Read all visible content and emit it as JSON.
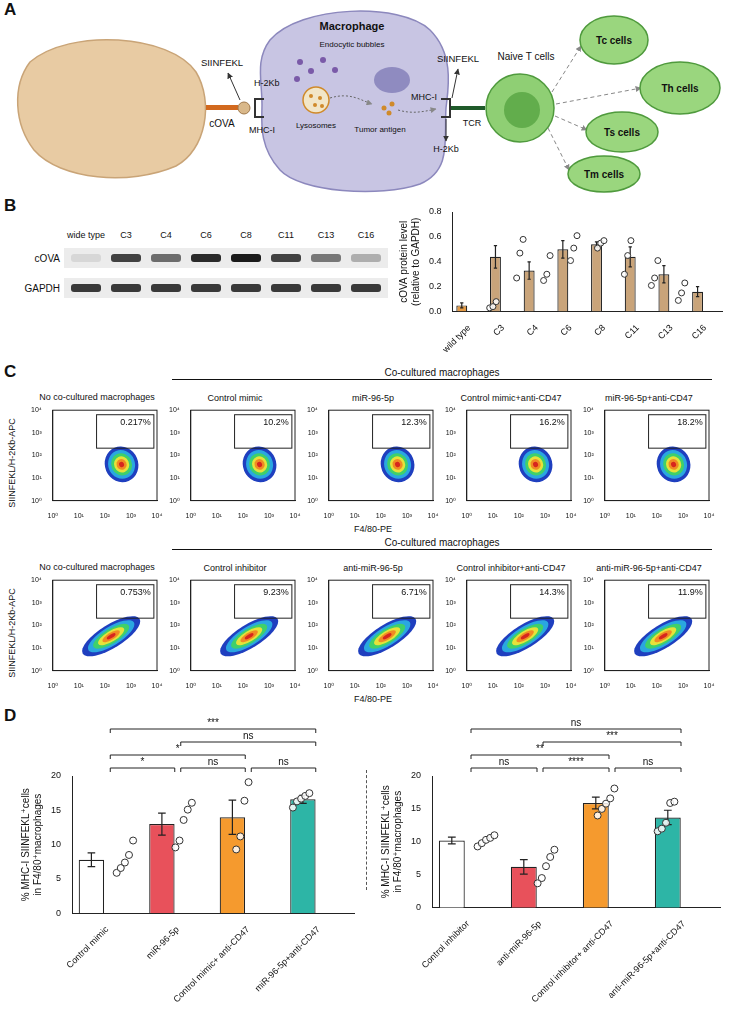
{
  "panel_letters": [
    "A",
    "B",
    "C",
    "D"
  ],
  "diagram": {
    "left_siinfekl": "SIINFEKL",
    "left_h2kb": "H-2Kb",
    "cova": "cOVA",
    "left_mhc": "MHC-I",
    "macrophage": "Macrophage",
    "endocytic": "Endocytic bubbles",
    "lysosomes": "Lysosomes",
    "antigen": "Tumor antigen",
    "right_mhc": "MHC-I",
    "right_siinfekl": "SIINFEKL",
    "right_h2kb": "H-2Kb",
    "tcr": "TCR",
    "naive": "Naive T cells",
    "subsets": [
      "Tc cells",
      "Th cells",
      "Ts cells",
      "Tm cells"
    ]
  },
  "blot": {
    "lanes": [
      "wide type",
      "C3",
      "C4",
      "C6",
      "C8",
      "C11",
      "C13",
      "C16"
    ],
    "rows": [
      "cOVA",
      "GAPDH"
    ]
  },
  "chart_data": [
    {
      "type": "bar",
      "categories": [
        "wild type",
        "C3",
        "C4",
        "C6",
        "C8",
        "C11",
        "C13",
        "C16"
      ],
      "values": [
        0.05,
        0.44,
        0.33,
        0.5,
        0.54,
        0.44,
        0.3,
        0.16
      ],
      "errors": [
        0.02,
        0.09,
        0.07,
        0.07,
        0.02,
        0.08,
        0.07,
        0.04
      ],
      "points": [
        [
          0.03,
          0.04,
          0.08
        ],
        [
          0.27,
          0.47,
          0.58
        ],
        [
          0.25,
          0.3,
          0.45
        ],
        [
          0.41,
          0.51,
          0.61
        ],
        [
          0.51,
          0.55,
          0.57
        ],
        [
          0.3,
          0.45,
          0.57
        ],
        [
          0.21,
          0.27,
          0.41
        ],
        [
          0.09,
          0.15,
          0.23
        ]
      ],
      "colors": [
        "#e39a45",
        "#c9a47a",
        "#c9a47a",
        "#c9a47a",
        "#c9a47a",
        "#c9a47a",
        "#c9a47a",
        "#c9a47a"
      ],
      "ylim": [
        0,
        0.8
      ],
      "yticks": [
        {
          "value": 0,
          "label": "0.0"
        },
        0.2,
        0.4,
        0.6,
        0.8
      ],
      "y_label": [
        "cOVA protein level",
        "(relative to GAPDH)"
      ],
      "grid": false
    },
    {
      "type": "bar",
      "categories": [
        "Control mimic",
        "miR-96-5p",
        "Control mimic+ anti-CD47",
        "miR-96-5p+anti-CD47"
      ],
      "values": [
        7.8,
        13.0,
        14.0,
        16.6
      ],
      "errors": [
        1.0,
        1.6,
        2.5,
        0.6
      ],
      "points": [
        [
          5.9,
          6.6,
          7.4,
          8.5,
          10.6
        ],
        [
          9.6,
          10.6,
          13.6,
          15.1,
          16.1
        ],
        [
          9.3,
          11.2,
          16.4,
          19.1
        ],
        [
          15.4,
          16.3,
          16.7,
          17.1,
          17.5
        ]
      ],
      "colors": [
        "#ffffff",
        "#e8515b",
        "#f59a2e",
        "#2db5a6"
      ],
      "ylim": [
        0,
        20
      ],
      "yticks": [
        0,
        5,
        10,
        15,
        20
      ],
      "y_label": [
        "% MHC-I SIINFEKL⁺cells",
        "in F4/80⁺macrophages"
      ],
      "grid": false,
      "comparisons": [
        {
          "from": "Control mimic",
          "to": "miR-96-5p",
          "label": "*"
        },
        {
          "from": "miR-96-5p",
          "to": "Control mimic+ anti-CD47",
          "label": "ns"
        },
        {
          "from": "Control mimic+ anti-CD47",
          "to": "miR-96-5p+anti-CD47",
          "label": "ns"
        },
        {
          "from": "Control mimic",
          "to": "Control mimic+ anti-CD47",
          "label": "*"
        },
        {
          "from": "miR-96-5p",
          "to": "miR-96-5p+anti-CD47",
          "label": "ns"
        },
        {
          "from": "Control mimic",
          "to": "miR-96-5p+anti-CD47",
          "label": "***"
        }
      ]
    },
    {
      "type": "bar",
      "categories": [
        "Control inhibitor",
        "anti-miR-96-5p",
        "Control inhibitor+ anti-CD47",
        "anti-miR-96-5p+anti-CD47"
      ],
      "values": [
        10.2,
        6.2,
        15.9,
        13.7
      ],
      "errors": [
        0.5,
        1.1,
        0.9,
        1.1
      ],
      "points": [
        [
          9.3,
          9.8,
          10.3,
          10.6,
          11.0
        ],
        [
          3.7,
          4.5,
          6.3,
          7.7,
          8.8
        ],
        [
          14.0,
          15.0,
          15.8,
          16.6,
          18.1
        ],
        [
          11.6,
          12.0,
          12.9,
          15.9,
          16.1
        ]
      ],
      "colors": [
        "#ffffff",
        "#e8515b",
        "#f59a2e",
        "#2db5a6"
      ],
      "ylim": [
        0,
        20
      ],
      "yticks": [
        0,
        5,
        10,
        15,
        20
      ],
      "y_label": [
        "% MHC-I SIINFEKL⁺cells",
        "in F4/80⁺macrophages"
      ],
      "grid": false,
      "comparisons": [
        {
          "from": "Control inhibitor",
          "to": "anti-miR-96-5p",
          "label": "ns"
        },
        {
          "from": "anti-miR-96-5p",
          "to": "Control inhibitor+ anti-CD47",
          "label": "****"
        },
        {
          "from": "Control inhibitor+ anti-CD47",
          "to": "anti-miR-96-5p+anti-CD47",
          "label": "ns"
        },
        {
          "from": "Control inhibitor",
          "to": "Control inhibitor+ anti-CD47",
          "label": "**"
        },
        {
          "from": "anti-miR-96-5p",
          "to": "anti-miR-96-5p+anti-CD47",
          "label": "***"
        },
        {
          "from": "Control inhibitor",
          "to": "anti-miR-96-5p+anti-CD47",
          "label": "ns"
        }
      ]
    }
  ],
  "flow": {
    "x_label": "F4/80-PE",
    "y_label": "SIINFEKL/H-2Kb-APC",
    "xlim": [
      1,
      10000
    ],
    "ylim": [
      1,
      10000
    ],
    "xticks": [
      {
        "value": 1,
        "label": "10⁰"
      },
      {
        "value": 10,
        "label": "10¹"
      },
      {
        "value": 100,
        "label": "10²"
      },
      {
        "value": 1000,
        "label": "10³"
      },
      {
        "value": 10000,
        "label": "10⁴"
      }
    ],
    "yticks": [
      {
        "value": 1,
        "label": "10⁰"
      },
      {
        "value": 10,
        "label": "10¹"
      },
      {
        "value": 100,
        "label": "10²"
      },
      {
        "value": 1000,
        "label": "10³"
      },
      {
        "value": 10000,
        "label": "10⁴"
      }
    ],
    "rows": [
      {
        "group": "Co-cultured macrophages",
        "plots": [
          {
            "title": "No co-cultured macrophages",
            "gate": "0.217%"
          },
          {
            "title": "Control mimic",
            "gate": "10.2%"
          },
          {
            "title": "miR-96-5p",
            "gate": "12.3%"
          },
          {
            "title": "Control mimic+anti-CD47",
            "gate": "16.2%"
          },
          {
            "title": "miR-96-5p+anti-CD47",
            "gate": "18.2%"
          }
        ]
      },
      {
        "group": "Co-cultured macrophages",
        "plots": [
          {
            "title": "No co-cultured macrophages",
            "gate": "0.753%"
          },
          {
            "title": "Control inhibitor",
            "gate": "9.23%"
          },
          {
            "title": "anti-miR-96-5p",
            "gate": "6.71%"
          },
          {
            "title": "Control inhibitor+anti-CD47",
            "gate": "14.3%"
          },
          {
            "title": "anti-miR-96-5p+anti-CD47",
            "gate": "11.9%"
          }
        ]
      }
    ]
  }
}
